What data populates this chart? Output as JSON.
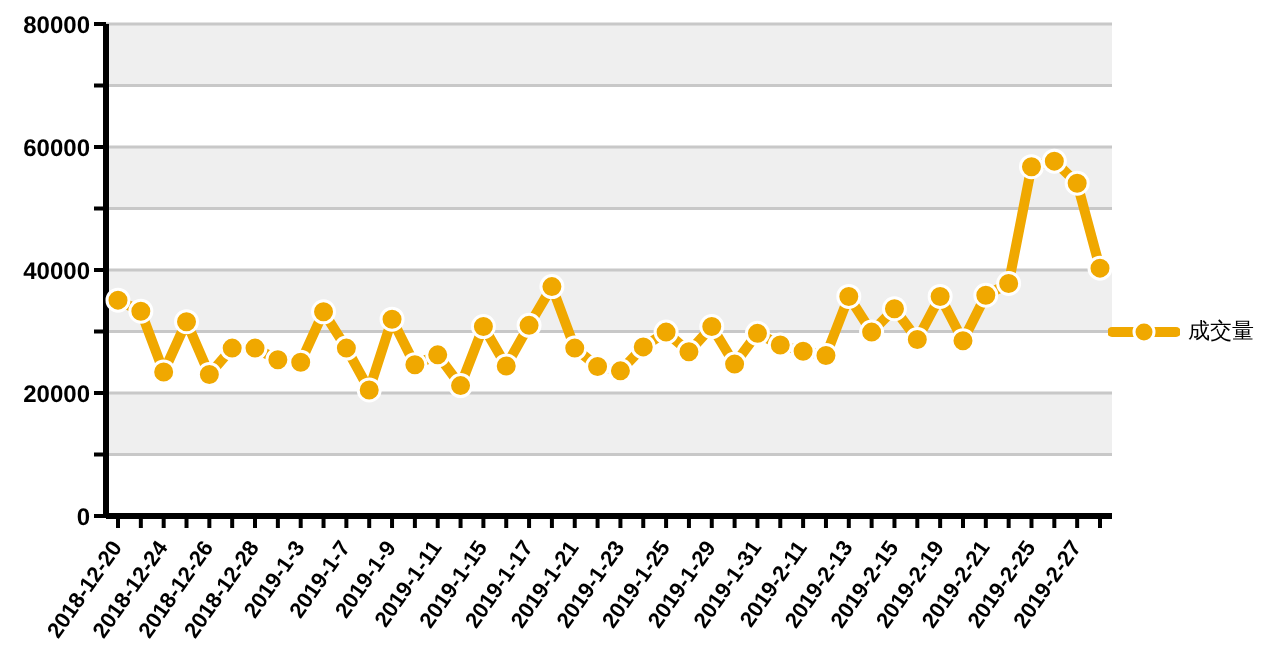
{
  "chart_data": {
    "type": "line",
    "categories": [
      "2018-12-20",
      null,
      "2018-12-24",
      null,
      "2018-12-26",
      null,
      "2018-12-28",
      null,
      "2019-1-3",
      null,
      "2019-1-7",
      null,
      "2019-1-9",
      null,
      "2019-1-11",
      null,
      "2019-1-15",
      null,
      "2019-1-17",
      null,
      "2019-1-21",
      null,
      "2019-1-23",
      null,
      "2019-1-25",
      null,
      "2019-1-29",
      null,
      "2019-1-31",
      null,
      "2019-2-11",
      null,
      "2019-2-13",
      null,
      "2019-2-15",
      null,
      "2019-2-19",
      null,
      "2019-2-21",
      null,
      "2019-2-25",
      null,
      "2019-2-27",
      null
    ],
    "series": [
      {
        "name": "成交量",
        "color": "#f0a800",
        "values": [
          35100,
          33300,
          23400,
          31600,
          23000,
          27300,
          27300,
          25400,
          25000,
          33200,
          27300,
          20500,
          32000,
          24600,
          26200,
          21200,
          30800,
          24400,
          31000,
          37300,
          27300,
          24300,
          23600,
          27500,
          29900,
          26700,
          30800,
          24700,
          29700,
          27800,
          26800,
          26100,
          35700,
          29900,
          33700,
          28700,
          35700,
          28500,
          35900,
          37800,
          56800,
          57700,
          54100,
          40300
        ]
      }
    ],
    "ylim": [
      0,
      80000
    ],
    "yticks": [
      0,
      {
        "value": 10000,
        "label": null
      },
      20000,
      {
        "value": 30000,
        "label": null
      },
      40000,
      {
        "value": 50000,
        "label": null
      },
      60000,
      {
        "value": 70000,
        "label": null
      },
      80000
    ],
    "grid": "y",
    "legend": "right",
    "marker": "circle",
    "line_style": "solid"
  }
}
